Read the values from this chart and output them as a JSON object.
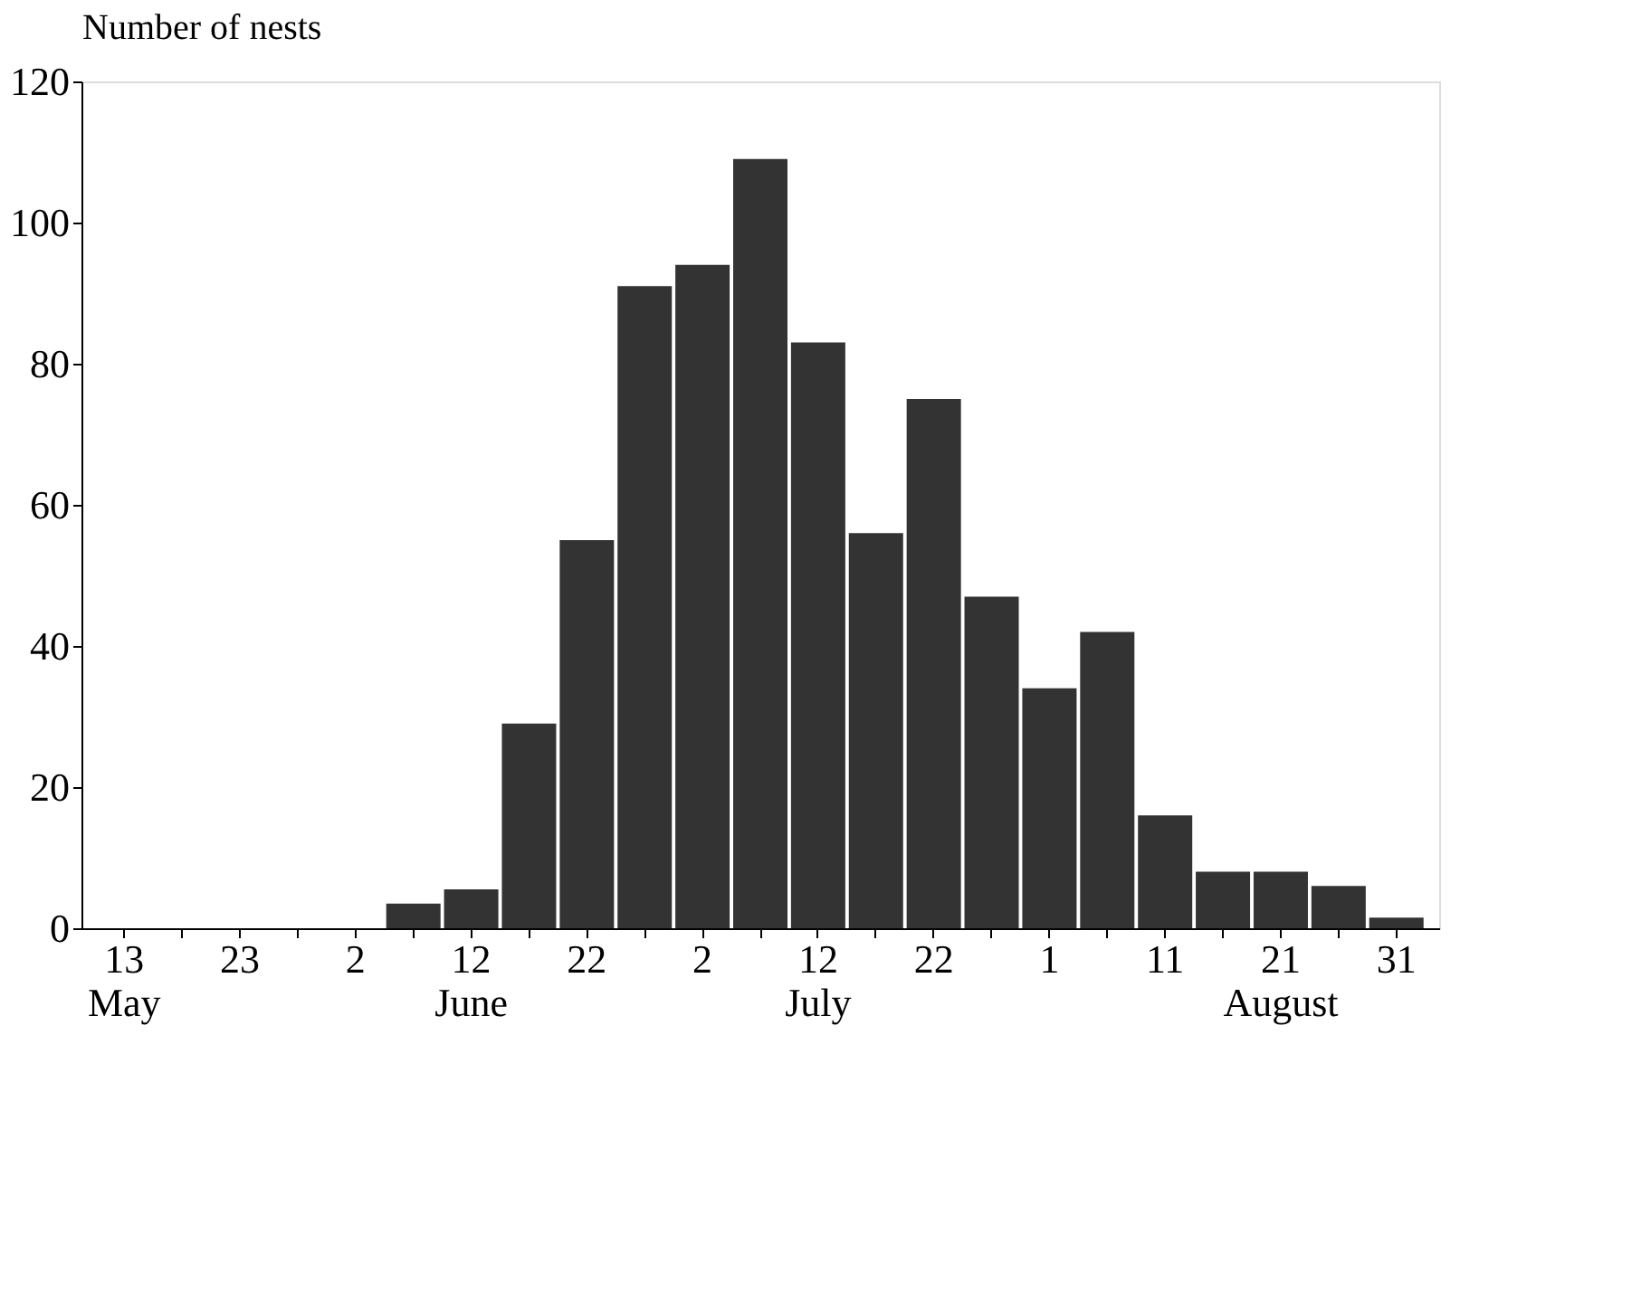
{
  "chart_data": {
    "type": "bar",
    "ylabel": "Number of nests",
    "categories": [
      "13\nMay",
      null,
      "23",
      null,
      "2",
      null,
      "12\nJune",
      null,
      "22",
      null,
      "2",
      null,
      "12\nJuly",
      null,
      "22",
      null,
      "1",
      null,
      "11",
      null,
      "21\nAugust",
      null,
      "31"
    ],
    "values": [
      0,
      0,
      0,
      0,
      0,
      3.5,
      5.5,
      29,
      55,
      91,
      94,
      109,
      83,
      56,
      75,
      47,
      34,
      42,
      16,
      8,
      8,
      6,
      1.5
    ],
    "color": "#333333",
    "ylim": [
      0,
      120
    ],
    "yticks": [
      0,
      20,
      40,
      60,
      80,
      100,
      120
    ],
    "grid": false
  }
}
